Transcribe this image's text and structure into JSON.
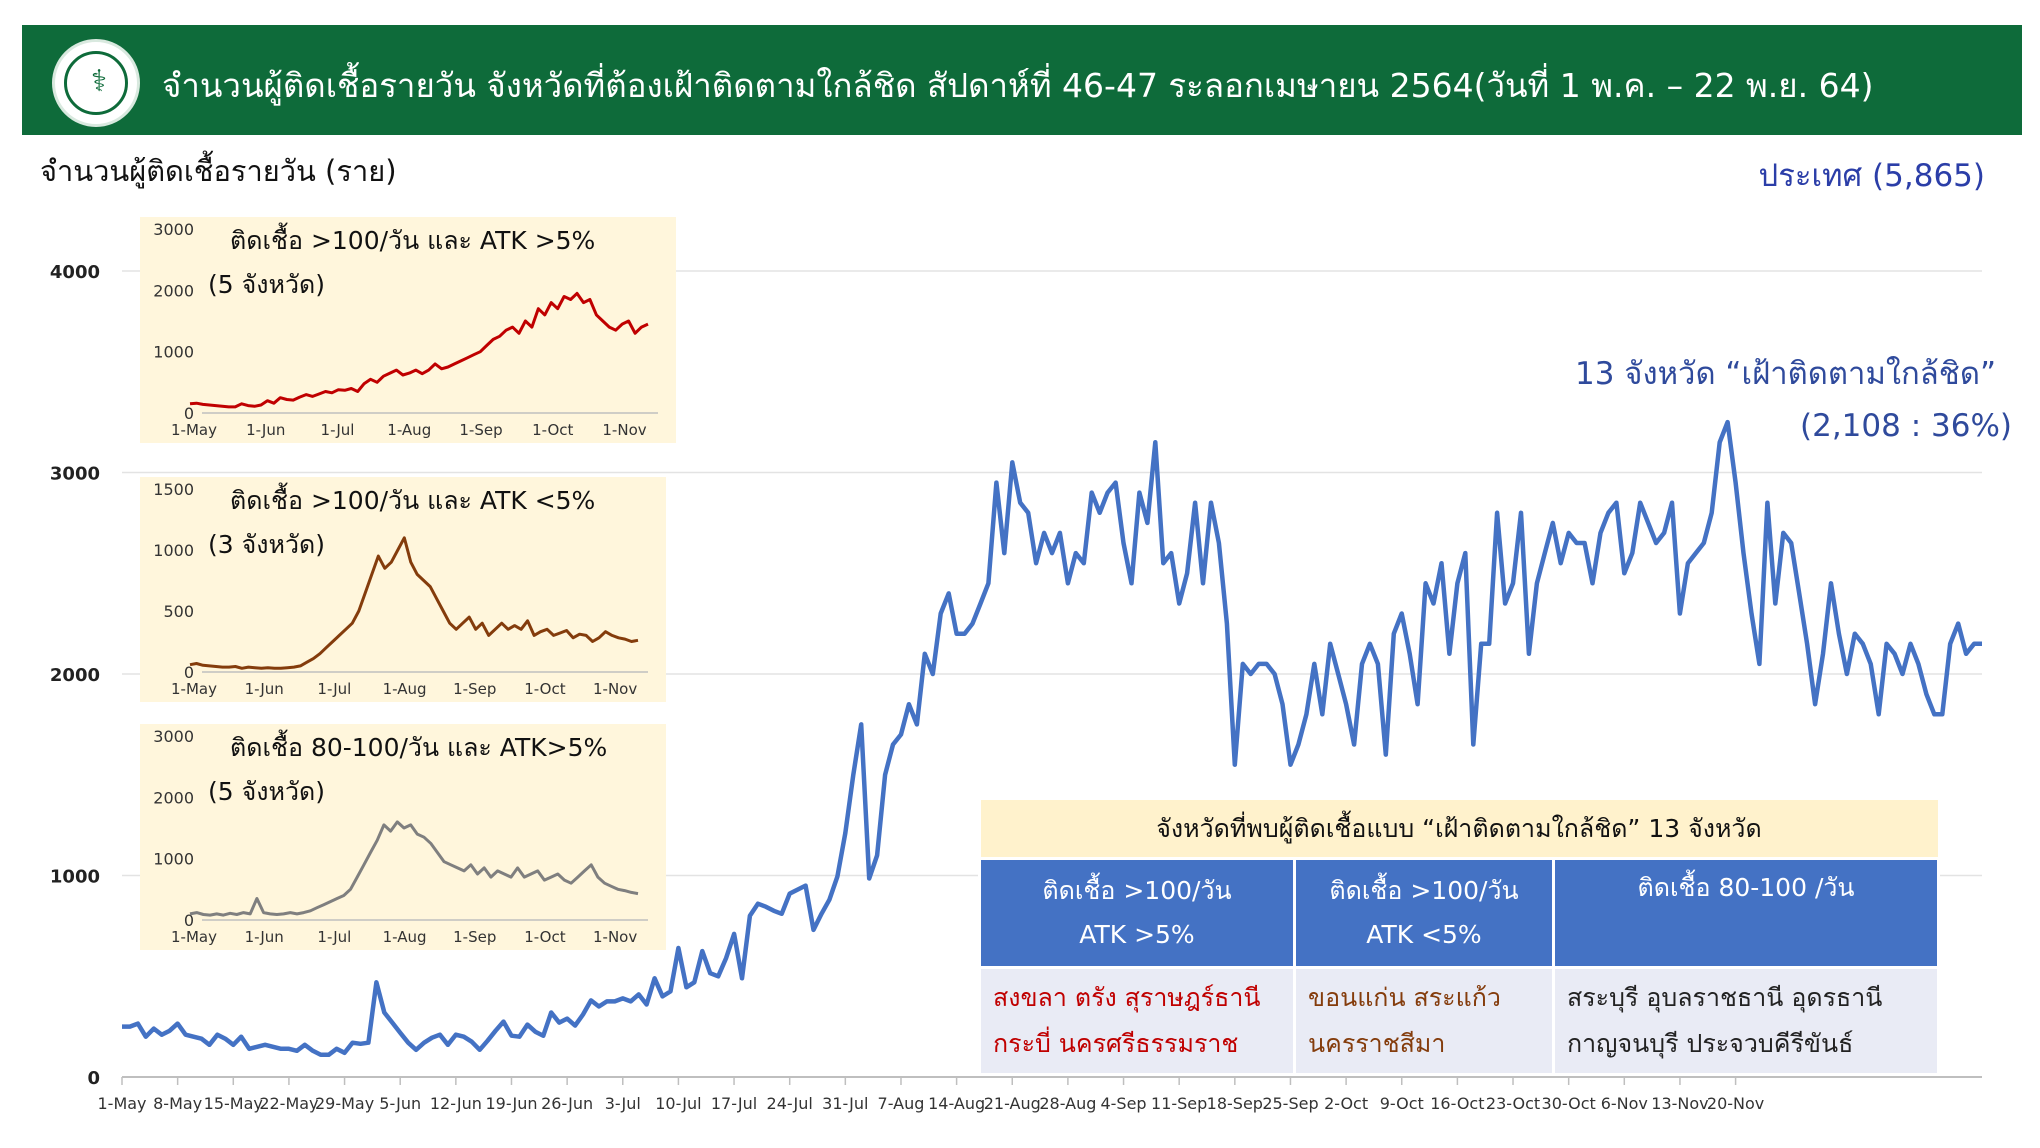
{
  "header": {
    "title": "จำนวนผู้ติดเชื้อรายวัน จังหวัดที่ต้องเฝ้าติดตามใกล้ชิด สัปดาห์ที่ 46-47 ระลอกเมษายน 2564(วันที่ 1 พ.ค. – 22 พ.ย. 64)",
    "accent_color": "#0e6b3a",
    "logo_icon": "ministry-of-public-health-seal"
  },
  "y_axis_label": "จำนวนผู้ติดเชื้อรายวัน (ราย)",
  "country_label": "ประเทศ (5,865)",
  "annotation": {
    "line1": "13 จังหวัด “เฝ้าติดตามใกล้ชิด”",
    "line2": "(2,108 : 36%)"
  },
  "chart_data": [
    {
      "type": "line",
      "color": "#4472c4",
      "ylim": [
        0,
        4000
      ],
      "yticks": [
        "0",
        "1000",
        "2000",
        "3000",
        "4000"
      ],
      "xticks": [
        "1-May",
        "8-May",
        "15-May",
        "22-May",
        "29-May",
        "5-Jun",
        "12-Jun",
        "19-Jun",
        "26-Jun",
        "3-Jul",
        "10-Jul",
        "17-Jul",
        "24-Jul",
        "31-Jul",
        "7-Aug",
        "14-Aug",
        "21-Aug",
        "28-Aug",
        "4-Sep",
        "11-Sep",
        "18-Sep",
        "25-Sep",
        "2-Oct",
        "9-Oct",
        "16-Oct",
        "23-Oct",
        "30-Oct",
        "6-Nov",
        "13-Nov",
        "20-Nov"
      ],
      "x_start": "1-May",
      "x_end": "22-Nov",
      "values": [
        250,
        250,
        265,
        200,
        240,
        210,
        230,
        265,
        210,
        200,
        190,
        160,
        210,
        190,
        160,
        200,
        140,
        150,
        160,
        150,
        140,
        140,
        130,
        160,
        130,
        110,
        110,
        140,
        120,
        170,
        165,
        170,
        470,
        320,
        270,
        220,
        170,
        135,
        170,
        195,
        210,
        160,
        210,
        200,
        175,
        135,
        180,
        230,
        275,
        205,
        200,
        260,
        225,
        205,
        320,
        270,
        290,
        255,
        310,
        380,
        350,
        375,
        375,
        390,
        375,
        410,
        360,
        490,
        400,
        425,
        640,
        445,
        470,
        625,
        515,
        500,
        590,
        710,
        490,
        800,
        860,
        845,
        825,
        810,
        910,
        930,
        950,
        730,
        810,
        880,
        995,
        1210,
        1500,
        1750,
        985,
        1100,
        1500,
        1650,
        1700,
        1850,
        1750,
        2100,
        2000,
        2300,
        2400,
        2200,
        2200,
        2250,
        2350,
        2450,
        2950,
        2600,
        3050,
        2850,
        2800,
        2550,
        2700,
        2600,
        2700,
        2450,
        2600,
        2550,
        2900,
        2800,
        2900,
        2950,
        2650,
        2450,
        2900,
        2750,
        3150,
        2550,
        2600,
        2350,
        2500,
        2850,
        2450,
        2850,
        2650,
        2250,
        1550,
        2050,
        2000,
        2050,
        2050,
        2000,
        1850,
        1550,
        1650,
        1800,
        2050,
        1800,
        2150,
        2000,
        1850,
        1650,
        2050,
        2150,
        2050,
        1600,
        2200,
        2300,
        2100,
        1850,
        2450,
        2350,
        2550,
        2100,
        2450,
        2600,
        1650,
        2150,
        2150,
        2800,
        2350,
        2450,
        2800,
        2100,
        2450,
        2600,
        2750,
        2550,
        2700,
        2650,
        2650,
        2450,
        2700,
        2800,
        2850,
        2500,
        2600,
        2850,
        2750,
        2650,
        2700,
        2850,
        2300,
        2550,
        2600,
        2650,
        2800,
        3150,
        3250,
        2950,
        2600,
        2300,
        2050,
        2850,
        2350,
        2700,
        2650,
        2400,
        2150,
        1850,
        2100,
        2450,
        2200,
        2000,
        2200,
        2150,
        2050,
        1800,
        2150,
        2100,
        2000,
        2150,
        2050,
        1900,
        1800,
        1800,
        2150,
        2250,
        2100,
        2150,
        2150
      ]
    },
    {
      "type": "line",
      "title": "ติดเชื้อ >100/วัน และ ATK >5%",
      "subtitle": "(5 จังหวัด)",
      "color": "#c00000",
      "ylim": [
        0,
        3000
      ],
      "yticks": [
        "0",
        "1000",
        "2000",
        "3000"
      ],
      "xticks": [
        "1-May",
        "1-Jun",
        "1-Jul",
        "1-Aug",
        "1-Sep",
        "1-Oct",
        "1-Nov"
      ],
      "values": [
        150,
        160,
        140,
        130,
        120,
        110,
        100,
        100,
        150,
        120,
        110,
        130,
        200,
        160,
        250,
        220,
        210,
        260,
        300,
        270,
        310,
        350,
        330,
        380,
        370,
        400,
        350,
        480,
        550,
        500,
        600,
        650,
        700,
        620,
        650,
        700,
        640,
        700,
        800,
        720,
        750,
        800,
        850,
        900,
        950,
        1000,
        1100,
        1200,
        1250,
        1350,
        1400,
        1300,
        1500,
        1400,
        1700,
        1600,
        1800,
        1700,
        1900,
        1850,
        1950,
        1800,
        1850,
        1600,
        1500,
        1400,
        1350,
        1450,
        1500,
        1300,
        1400,
        1450
      ]
    },
    {
      "type": "line",
      "title": "ติดเชื้อ >100/วัน และ ATK <5%",
      "subtitle": "(3 จังหวัด)",
      "color": "#843c0c",
      "ylim": [
        0,
        1500
      ],
      "yticks": [
        "0",
        "500",
        "1000",
        "1500"
      ],
      "xticks": [
        "1-May",
        "1-Jun",
        "1-Jul",
        "1-Aug",
        "1-Sep",
        "1-Oct",
        "1-Nov"
      ],
      "values": [
        60,
        70,
        55,
        50,
        45,
        40,
        40,
        45,
        30,
        40,
        35,
        30,
        35,
        30,
        30,
        35,
        40,
        50,
        80,
        110,
        150,
        200,
        250,
        300,
        350,
        400,
        500,
        650,
        800,
        950,
        850,
        900,
        1000,
        1100,
        900,
        800,
        750,
        700,
        600,
        500,
        400,
        350,
        400,
        450,
        350,
        400,
        300,
        350,
        400,
        350,
        380,
        350,
        420,
        300,
        330,
        350,
        300,
        320,
        340,
        280,
        310,
        300,
        250,
        280,
        330,
        300,
        280,
        270,
        250,
        260
      ]
    },
    {
      "type": "line",
      "title": "ติดเชื้อ 80-100/วัน และ ATK>5%",
      "subtitle": "(5 จังหวัด)",
      "color": "#7f7f7f",
      "ylim": [
        0,
        3000
      ],
      "yticks": [
        "0",
        "1000",
        "2000",
        "3000"
      ],
      "xticks": [
        "1-May",
        "1-Jun",
        "1-Jul",
        "1-Aug",
        "1-Sep",
        "1-Oct",
        "1-Nov"
      ],
      "values": [
        100,
        120,
        90,
        80,
        100,
        80,
        110,
        90,
        120,
        100,
        350,
        120,
        100,
        90,
        100,
        120,
        100,
        120,
        150,
        200,
        250,
        300,
        350,
        400,
        500,
        700,
        900,
        1100,
        1300,
        1550,
        1450,
        1600,
        1500,
        1550,
        1400,
        1350,
        1250,
        1100,
        950,
        900,
        850,
        800,
        900,
        750,
        850,
        700,
        800,
        750,
        700,
        850,
        700,
        750,
        800,
        650,
        700,
        750,
        650,
        600,
        700,
        800,
        900,
        700,
        600,
        550,
        500,
        480,
        450,
        430
      ]
    }
  ],
  "table": {
    "title": "จังหวัดที่พบผู้ติดเชื้อแบบ “เฝ้าติดตามใกล้ชิด” 13 จังหวัด",
    "col1_head1": "ติดเชื้อ >100/วัน",
    "col1_head2": "ATK >5%",
    "col2_head1": "ติดเชื้อ >100/วัน",
    "col2_head2": "ATK <5%",
    "col3_head1": "ติดเชื้อ 80-100 /วัน",
    "col1_line1": "สงขลา ตรัง สุราษฎร์ธานี",
    "col1_line2": "กระบี่ นครศรีธรรมราช",
    "col2_line1": "ขอนแก่น สระแก้ว",
    "col2_line2": "นครราชสีมา",
    "col3_line1": "สระบุรี อุบลราชธานี อุดรธานี",
    "col3_line2": "กาญจนบุรี ประจวบคีรีขันธ์"
  }
}
